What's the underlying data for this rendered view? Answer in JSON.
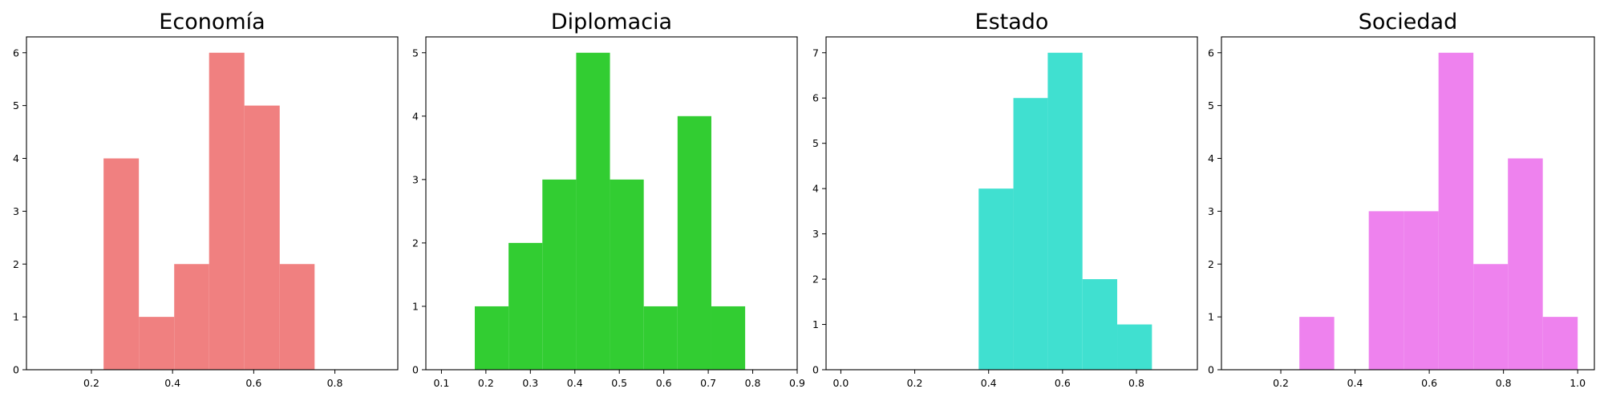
{
  "chart_data": [
    {
      "type": "histogram",
      "title": "Economía",
      "color": "#f08080",
      "xlim": [
        0.04,
        0.955
      ],
      "ylim": [
        0,
        6.3
      ],
      "xticks": [
        0.2,
        0.4,
        0.6,
        0.8
      ],
      "yticks": [
        0,
        1,
        2,
        3,
        4,
        5,
        6
      ],
      "bins": [
        {
          "x0": 0.23,
          "x1": 0.317,
          "count": 4
        },
        {
          "x0": 0.317,
          "x1": 0.404,
          "count": 1
        },
        {
          "x0": 0.404,
          "x1": 0.49,
          "count": 2
        },
        {
          "x0": 0.49,
          "x1": 0.577,
          "count": 6
        },
        {
          "x0": 0.577,
          "x1": 0.664,
          "count": 5
        },
        {
          "x0": 0.664,
          "x1": 0.75,
          "count": 2
        }
      ]
    },
    {
      "type": "histogram",
      "title": "Diplomacia",
      "color": "#32cd32",
      "xlim": [
        0.065,
        0.9
      ],
      "ylim": [
        0,
        5.25
      ],
      "xticks": [
        0.1,
        0.2,
        0.3,
        0.4,
        0.5,
        0.6,
        0.7,
        0.8,
        0.9
      ],
      "yticks": [
        0,
        1,
        2,
        3,
        4,
        5
      ],
      "bins": [
        {
          "x0": 0.175,
          "x1": 0.251,
          "count": 1
        },
        {
          "x0": 0.251,
          "x1": 0.327,
          "count": 2
        },
        {
          "x0": 0.327,
          "x1": 0.403,
          "count": 3
        },
        {
          "x0": 0.403,
          "x1": 0.479,
          "count": 5
        },
        {
          "x0": 0.479,
          "x1": 0.555,
          "count": 3
        },
        {
          "x0": 0.555,
          "x1": 0.631,
          "count": 1
        },
        {
          "x0": 0.631,
          "x1": 0.707,
          "count": 4
        },
        {
          "x0": 0.707,
          "x1": 0.783,
          "count": 1
        }
      ]
    },
    {
      "type": "histogram",
      "title": "Estado",
      "color": "#40e0d0",
      "xlim": [
        -0.04,
        0.965
      ],
      "ylim": [
        0,
        7.35
      ],
      "xticks": [
        0.0,
        0.2,
        0.4,
        0.6,
        0.8
      ],
      "yticks": [
        0,
        1,
        2,
        3,
        4,
        5,
        6,
        7
      ],
      "bins": [
        {
          "x0": 0.373,
          "x1": 0.467,
          "count": 4
        },
        {
          "x0": 0.467,
          "x1": 0.56,
          "count": 6
        },
        {
          "x0": 0.56,
          "x1": 0.654,
          "count": 7
        },
        {
          "x0": 0.654,
          "x1": 0.748,
          "count": 2
        },
        {
          "x0": 0.748,
          "x1": 0.842,
          "count": 1
        }
      ]
    },
    {
      "type": "histogram",
      "title": "Sociedad",
      "color": "#ee82ee",
      "xlim": [
        0.04,
        1.045
      ],
      "ylim": [
        0,
        6.3
      ],
      "xticks": [
        0.2,
        0.4,
        0.6,
        0.8,
        1.0
      ],
      "yticks": [
        0,
        1,
        2,
        3,
        4,
        5,
        6
      ],
      "bins": [
        {
          "x0": 0.25,
          "x1": 0.344,
          "count": 1
        },
        {
          "x0": 0.437,
          "x1": 0.531,
          "count": 3
        },
        {
          "x0": 0.531,
          "x1": 0.625,
          "count": 3
        },
        {
          "x0": 0.625,
          "x1": 0.719,
          "count": 6
        },
        {
          "x0": 0.719,
          "x1": 0.812,
          "count": 2
        },
        {
          "x0": 0.812,
          "x1": 0.906,
          "count": 4
        },
        {
          "x0": 0.906,
          "x1": 1.0,
          "count": 1
        }
      ]
    }
  ]
}
